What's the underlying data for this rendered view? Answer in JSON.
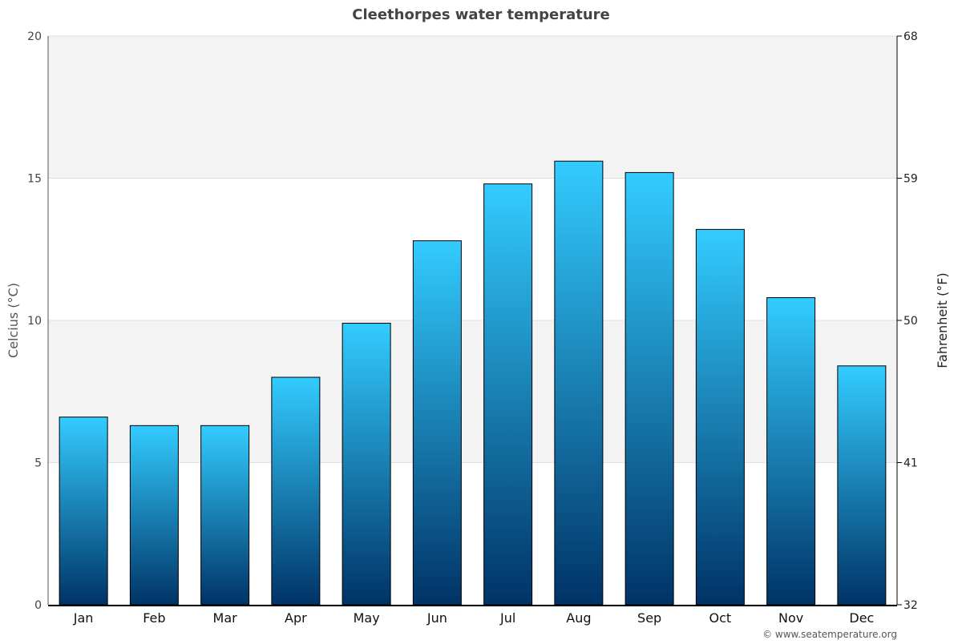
{
  "chart_data": {
    "type": "bar",
    "title": "Cleethorpes water temperature",
    "categories": [
      "Jan",
      "Feb",
      "Mar",
      "Apr",
      "May",
      "Jun",
      "Jul",
      "Aug",
      "Sep",
      "Oct",
      "Nov",
      "Dec"
    ],
    "values": [
      6.6,
      6.3,
      6.3,
      8.0,
      9.9,
      12.8,
      14.8,
      15.6,
      15.2,
      13.2,
      10.8,
      8.4
    ],
    "ylabel": "Celcius (°C)",
    "y2label": "Fahrenheit (°F)",
    "ylim": [
      0,
      20
    ],
    "y2lim": [
      32,
      68
    ],
    "yticks": [
      "0",
      "5",
      "10",
      "15",
      "20"
    ],
    "y2ticks": [
      "32",
      "41",
      "50",
      "59",
      "68"
    ],
    "grid": true,
    "legend": "none",
    "colors": {
      "bar_top": "#33ccff",
      "bar_bottom": "#003366",
      "band": "#f3f3f3"
    }
  },
  "credit": "© www.seatemperature.org"
}
